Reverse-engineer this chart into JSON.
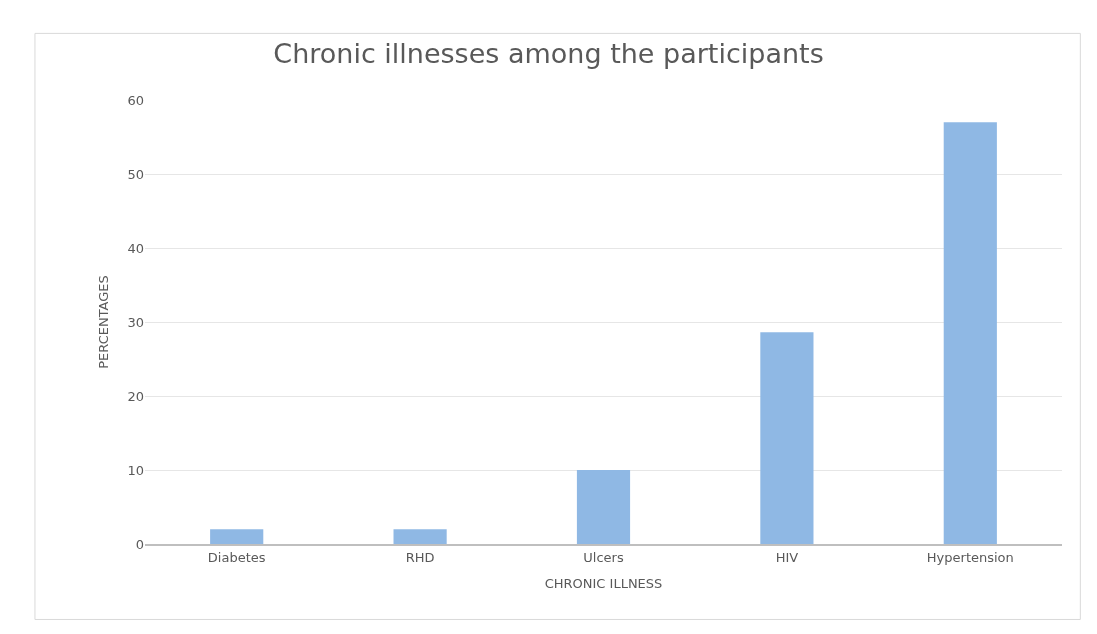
{
  "chart_data": {
    "type": "bar",
    "title": "Chronic illnesses among the participants",
    "xlabel": "CHRONIC ILLNESS",
    "ylabel": "PERCENTAGES",
    "categories": [
      "Diabetes",
      "RHD",
      "Ulcers",
      "HIV",
      "Hypertension"
    ],
    "values": [
      2,
      2,
      10,
      28.6,
      57
    ],
    "color": "#8fb8e4",
    "ylim": [
      0,
      60
    ],
    "yticks": [
      0,
      10,
      20,
      30,
      40,
      50,
      60
    ],
    "grid": "y"
  }
}
